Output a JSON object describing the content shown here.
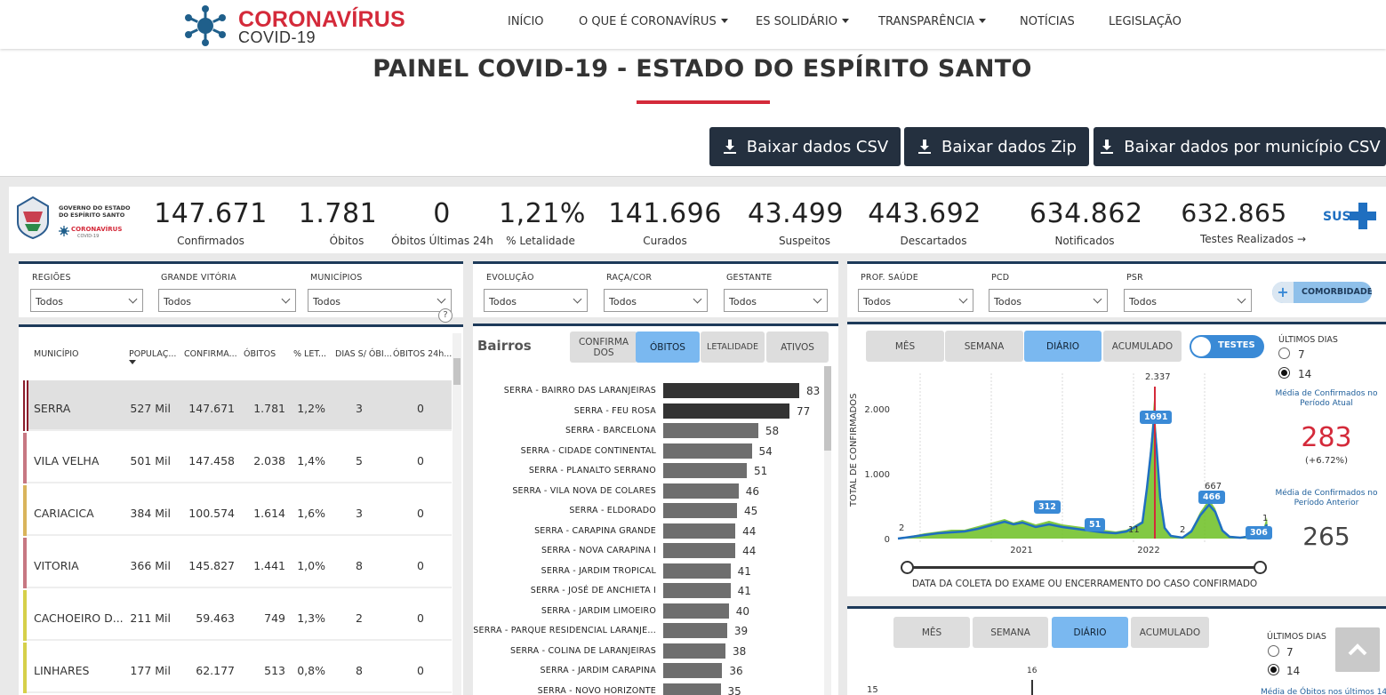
{
  "brand": {
    "title": "CORONAVÍRUS",
    "subtitle": "COVID-19"
  },
  "nav": {
    "items": [
      {
        "label": "INÍCIO",
        "caret": false
      },
      {
        "label": "O QUE É CORONAVÍRUS",
        "caret": true
      },
      {
        "label": "ES SOLIDÁRIO",
        "caret": true
      },
      {
        "label": "TRANSPARÊNCIA",
        "caret": true
      },
      {
        "label": "NOTÍCIAS",
        "caret": false
      },
      {
        "label": "LEGISLAÇÃO",
        "caret": false
      }
    ]
  },
  "page": {
    "title": "PAINEL COVID-19 - ESTADO DO ESPÍRITO SANTO"
  },
  "downloads": [
    "Baixar dados CSV",
    "Baixar dados Zip",
    "Baixar dados por município CSV"
  ],
  "gov_logo": {
    "line1": "GOVERNO DO ESTADO",
    "line2": "DO ESPÍRITO SANTO",
    "brand": "CORONAVÍRUS",
    "brand_sub": "COVID-19"
  },
  "kpis": [
    {
      "value": "147.671",
      "label": "Confirmados"
    },
    {
      "value": "1.781",
      "label": "Óbitos"
    },
    {
      "value": "0",
      "label": "Óbitos Últimas 24h"
    },
    {
      "value": "1,21%",
      "label": "% Letalidade"
    },
    {
      "value": "141.696",
      "label": "Curados"
    },
    {
      "value": "43.499",
      "label": "Suspeitos"
    },
    {
      "value": "443.692",
      "label": "Descartados"
    },
    {
      "value": "634.862",
      "label": "Notificados"
    },
    {
      "value": "632.865",
      "label": "Testes Realizados"
    }
  ],
  "sus_logo": "SUS",
  "filters": {
    "group1": [
      {
        "label": "REGIÕES",
        "value": "Todos"
      },
      {
        "label": "GRANDE VITÓRIA",
        "value": "Todos"
      },
      {
        "label": "MUNICÍPIOS",
        "value": "Todos"
      }
    ],
    "group2": [
      {
        "label": "EVOLUÇÃO",
        "value": "Todos"
      },
      {
        "label": "RAÇA/COR",
        "value": "Todos"
      },
      {
        "label": "GESTANTE",
        "value": "Todos"
      }
    ],
    "group3": [
      {
        "label": "PROF. SAÚDE",
        "value": "Todos"
      },
      {
        "label": "PCD",
        "value": "Todos"
      },
      {
        "label": "PSR",
        "value": "Todos"
      }
    ],
    "comorbidade": "COMORBIDADE",
    "help": "?"
  },
  "table": {
    "headers": [
      "MUNICÍPIO",
      "POPULAÇ...",
      "CONFIRMA...",
      "ÓBITOS",
      "% LET...",
      "DIAS S/ ÓBI...",
      "ÓBITOS 24h..."
    ],
    "rows": [
      {
        "name": "SERRA",
        "pop": "527 Mil",
        "conf": "147.671",
        "obitos": "1.781",
        "let": "1,2%",
        "dias": "3",
        "ob24": "0",
        "color": "#8b1c2b",
        "selected": true
      },
      {
        "name": "VILA VELHA",
        "pop": "501 Mil",
        "conf": "147.458",
        "obitos": "2.038",
        "let": "1,4%",
        "dias": "5",
        "ob24": "0",
        "color": "#c77782",
        "selected": false
      },
      {
        "name": "CARIACICA",
        "pop": "384 Mil",
        "conf": "100.574",
        "obitos": "1.614",
        "let": "1,6%",
        "dias": "3",
        "ob24": "0",
        "color": "#d9b45c",
        "selected": false
      },
      {
        "name": "VITORIA",
        "pop": "366 Mil",
        "conf": "145.827",
        "obitos": "1.441",
        "let": "1,0%",
        "dias": "8",
        "ob24": "0",
        "color": "#c77782",
        "selected": false
      },
      {
        "name": "CACHOEIRO D...",
        "pop": "211 Mil",
        "conf": "59.463",
        "obitos": "749",
        "let": "1,3%",
        "dias": "2",
        "ob24": "0",
        "color": "#d6d04a",
        "selected": false
      },
      {
        "name": "LINHARES",
        "pop": "177 Mil",
        "conf": "62.177",
        "obitos": "513",
        "let": "0,8%",
        "dias": "8",
        "ob24": "0",
        "color": "#d6d04a",
        "selected": false
      }
    ]
  },
  "bairros": {
    "title": "Bairros",
    "tabs": [
      {
        "label": "CONFIRMADOS",
        "active": false
      },
      {
        "label": "ÓBITOS",
        "active": true
      },
      {
        "label": "LETALIDADE",
        "active": false
      },
      {
        "label": "ATIVOS",
        "active": false
      }
    ],
    "max": 83,
    "rows": [
      {
        "name": "SERRA - BAIRRO DAS LARANJEIRAS",
        "value": 83,
        "dark": true
      },
      {
        "name": "SERRA - FEU ROSA",
        "value": 77,
        "dark": true
      },
      {
        "name": "SERRA - BARCELONA",
        "value": 58,
        "dark": false
      },
      {
        "name": "SERRA - CIDADE CONTINENTAL",
        "value": 54,
        "dark": false
      },
      {
        "name": "SERRA - PLANALTO SERRANO",
        "value": 51,
        "dark": false
      },
      {
        "name": "SERRA - VILA NOVA DE COLARES",
        "value": 46,
        "dark": false
      },
      {
        "name": "SERRA - ELDORADO",
        "value": 45,
        "dark": false
      },
      {
        "name": "SERRA - CARAPINA GRANDE",
        "value": 44,
        "dark": false
      },
      {
        "name": "SERRA - NOVA CARAPINA I",
        "value": 44,
        "dark": false
      },
      {
        "name": "SERRA - JARDIM TROPICAL",
        "value": 41,
        "dark": false
      },
      {
        "name": "SERRA - JOSÉ DE ANCHIETA I",
        "value": 41,
        "dark": false
      },
      {
        "name": "SERRA - JARDIM LIMOEIRO",
        "value": 40,
        "dark": false
      },
      {
        "name": "SERRA - PARQUE RESIDENCIAL LARANJE...",
        "value": 39,
        "dark": false
      },
      {
        "name": "SERRA - COLINA DE LARANJEIRAS",
        "value": 38,
        "dark": false
      },
      {
        "name": "SERRA - JARDIM CARAPINA",
        "value": 36,
        "dark": false
      },
      {
        "name": "SERRA - NOVO HORIZONTE",
        "value": 35,
        "dark": false
      }
    ]
  },
  "timeseries": {
    "tabs": [
      {
        "label": "MÊS",
        "active": false
      },
      {
        "label": "SEMANA",
        "active": false
      },
      {
        "label": "DIÁRIO",
        "active": true
      },
      {
        "label": "ACUMULADO",
        "active": false
      }
    ],
    "toggle": "TESTES",
    "ylabel": "TOTAL DE CONFIRMADOS",
    "yticks": [
      "0",
      "1.000",
      "2.000"
    ],
    "xticks": [
      "2021",
      "2022"
    ],
    "xlabel": "DATA DA COLETA DO EXAME OU ENCERRAMENTO DO CASO CONFIRMADO",
    "annotations": {
      "peak": "2.337",
      "a2": "2",
      "a11": "11",
      "a2b": "2",
      "a667": "667",
      "a1": "1"
    },
    "tags": [
      "312",
      "51",
      "1691",
      "466",
      "306"
    ],
    "ultimos_dias": "ÚLTIMOS DIAS",
    "radio": [
      {
        "label": "7",
        "checked": false
      },
      {
        "label": "14",
        "checked": true
      }
    ],
    "media_atual_label": "Média de Confirmados no Período Atual",
    "media_atual": "283",
    "media_atual_var": "(+6.72%)",
    "media_anterior_label": "Média de Confirmados no Período Anterior",
    "media_anterior": "265"
  },
  "obitos_chart": {
    "tabs": [
      {
        "label": "MÊS",
        "active": false
      },
      {
        "label": "SEMANA",
        "active": false
      },
      {
        "label": "DIÁRIO",
        "active": true
      },
      {
        "label": "ACUMULADO",
        "active": false
      }
    ],
    "ultimos_dias": "ÚLTIMOS DIAS",
    "radio": [
      {
        "label": "7",
        "checked": false
      },
      {
        "label": "14",
        "checked": true
      }
    ],
    "ytick": "15",
    "peak": "16",
    "media_label": "Média de Óbitos nos últimos 14"
  },
  "colors": {
    "accent": "#d42a3a",
    "navy": "#24303f",
    "panel_border": "#1d3a5a",
    "tab_active": "#7ab8f0",
    "value_red": "#d42a3a",
    "series_blue": "#1f6fc0",
    "series_green": "#5aa800"
  }
}
